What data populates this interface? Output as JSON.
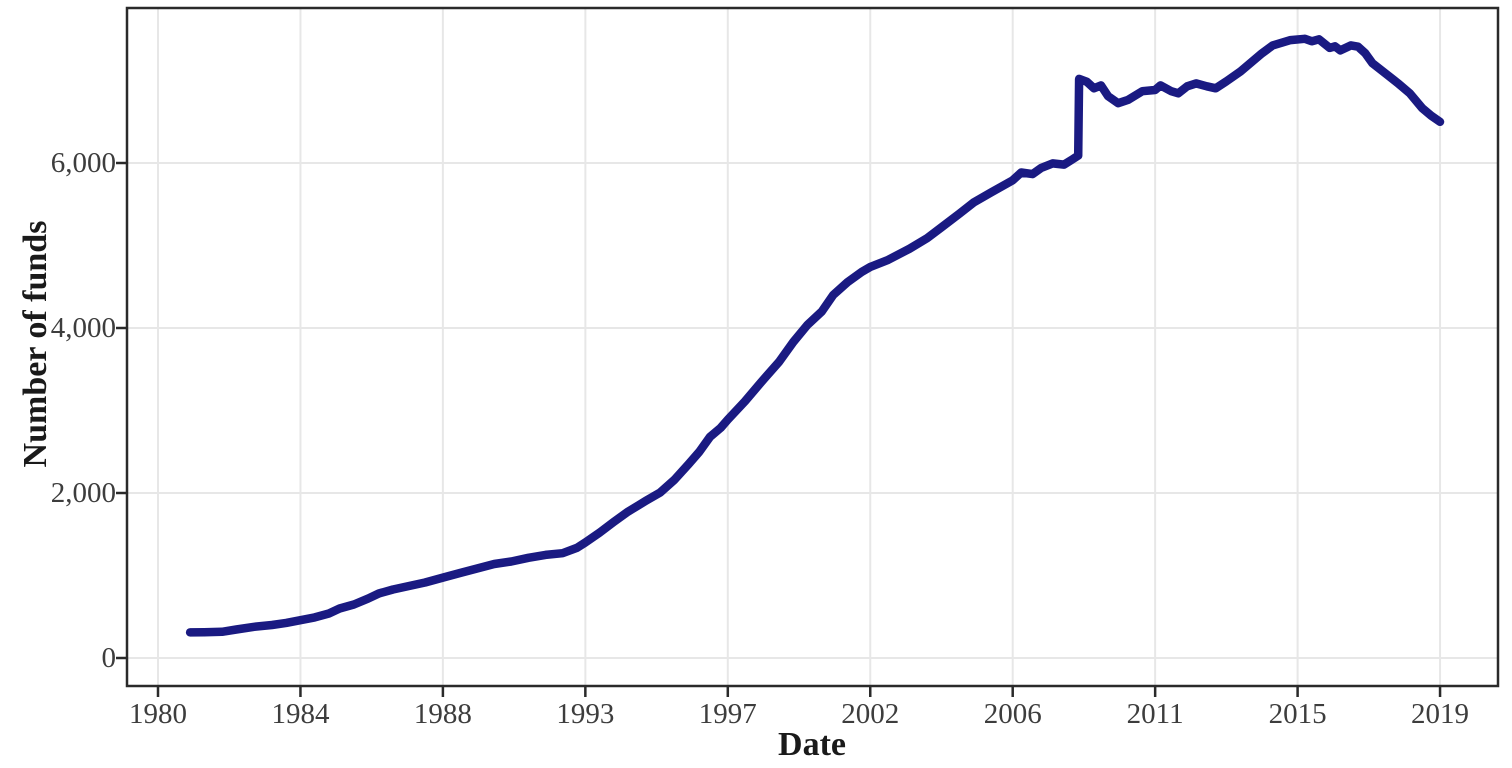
{
  "figure": {
    "xlabel": "Date",
    "ylabel": "Number of funds"
  },
  "colors": {
    "line": "#1a1a82",
    "grid": "#e7e7e7",
    "panel_border": "#2a2a2a",
    "tick_label": "#3d3d3d",
    "axis_title": "#1a1a1a",
    "background": "#ffffff"
  },
  "chart_data": {
    "type": "line",
    "title": "",
    "xlabel": "Date",
    "ylabel": "Number of funds",
    "x_ticks": [
      "1980",
      "1984",
      "1988",
      "1993",
      "1997",
      "2002",
      "2006",
      "2011",
      "2015",
      "2019"
    ],
    "y_ticks": [
      "0",
      "2,000",
      "4,000",
      "6,000"
    ],
    "y_tick_values": [
      0,
      2000,
      4000,
      6000
    ],
    "xlim_years": [
      1979.1,
      2020.6
    ],
    "ylim": [
      -340,
      7880
    ],
    "grid": "major-only",
    "legend": "none",
    "notes": "Monthly count of funds; vertical jump from ~6090 to ~7020 in early 2008; peak ~7505 around 2015; decline to ~6500 by 2019.",
    "series": [
      {
        "name": "Number of funds",
        "color": "#1a1a82",
        "points": [
          [
            1980.9,
            310
          ],
          [
            1981.3,
            312
          ],
          [
            1981.8,
            318
          ],
          [
            1982.2,
            345
          ],
          [
            1982.7,
            378
          ],
          [
            1983.2,
            400
          ],
          [
            1983.6,
            425
          ],
          [
            1984.0,
            458
          ],
          [
            1984.4,
            492
          ],
          [
            1984.8,
            540
          ],
          [
            1985.1,
            600
          ],
          [
            1985.5,
            648
          ],
          [
            1985.9,
            720
          ],
          [
            1986.2,
            782
          ],
          [
            1986.6,
            830
          ],
          [
            1987.0,
            868
          ],
          [
            1987.5,
            915
          ],
          [
            1988.0,
            975
          ],
          [
            1988.6,
            1030
          ],
          [
            1989.2,
            1085
          ],
          [
            1989.8,
            1140
          ],
          [
            1990.4,
            1170
          ],
          [
            1991.0,
            1215
          ],
          [
            1991.6,
            1250
          ],
          [
            1992.2,
            1270
          ],
          [
            1992.7,
            1335
          ],
          [
            1993.0,
            1400
          ],
          [
            1993.4,
            1520
          ],
          [
            1993.8,
            1650
          ],
          [
            1994.2,
            1775
          ],
          [
            1994.7,
            1905
          ],
          [
            1995.1,
            2005
          ],
          [
            1995.5,
            2160
          ],
          [
            1995.9,
            2350
          ],
          [
            1996.2,
            2500
          ],
          [
            1996.5,
            2680
          ],
          [
            1996.8,
            2790
          ],
          [
            1997.0,
            2890
          ],
          [
            1997.6,
            3110
          ],
          [
            1998.2,
            3355
          ],
          [
            1998.8,
            3590
          ],
          [
            1999.3,
            3830
          ],
          [
            1999.8,
            4040
          ],
          [
            2000.3,
            4200
          ],
          [
            2000.7,
            4400
          ],
          [
            2001.2,
            4555
          ],
          [
            2001.7,
            4680
          ],
          [
            2002.0,
            4740
          ],
          [
            2002.5,
            4825
          ],
          [
            2003.1,
            4960
          ],
          [
            2003.6,
            5090
          ],
          [
            2004.0,
            5220
          ],
          [
            2004.5,
            5385
          ],
          [
            2004.9,
            5520
          ],
          [
            2005.4,
            5645
          ],
          [
            2006.0,
            5790
          ],
          [
            2006.3,
            5885
          ],
          [
            2006.7,
            5865
          ],
          [
            2007.0,
            5940
          ],
          [
            2007.4,
            5995
          ],
          [
            2007.8,
            5980
          ],
          [
            2008.1,
            6045
          ],
          [
            2008.3,
            6090
          ],
          [
            2008.33,
            7020
          ],
          [
            2008.6,
            6985
          ],
          [
            2008.85,
            6905
          ],
          [
            2009.1,
            6940
          ],
          [
            2009.35,
            6810
          ],
          [
            2009.7,
            6725
          ],
          [
            2010.05,
            6765
          ],
          [
            2010.55,
            6870
          ],
          [
            2011.0,
            6885
          ],
          [
            2011.15,
            6940
          ],
          [
            2011.45,
            6870
          ],
          [
            2011.65,
            6845
          ],
          [
            2011.9,
            6930
          ],
          [
            2012.15,
            6965
          ],
          [
            2012.45,
            6930
          ],
          [
            2012.7,
            6905
          ],
          [
            2013.0,
            6990
          ],
          [
            2013.4,
            7110
          ],
          [
            2014.0,
            7330
          ],
          [
            2014.3,
            7425
          ],
          [
            2014.8,
            7490
          ],
          [
            2015.2,
            7505
          ],
          [
            2015.4,
            7475
          ],
          [
            2015.6,
            7500
          ],
          [
            2015.9,
            7395
          ],
          [
            2016.05,
            7415
          ],
          [
            2016.2,
            7365
          ],
          [
            2016.5,
            7425
          ],
          [
            2016.7,
            7410
          ],
          [
            2016.9,
            7330
          ],
          [
            2017.1,
            7210
          ],
          [
            2017.5,
            7075
          ],
          [
            2017.85,
            6955
          ],
          [
            2018.15,
            6845
          ],
          [
            2018.5,
            6665
          ],
          [
            2018.75,
            6575
          ],
          [
            2019.0,
            6500
          ]
        ]
      }
    ]
  }
}
